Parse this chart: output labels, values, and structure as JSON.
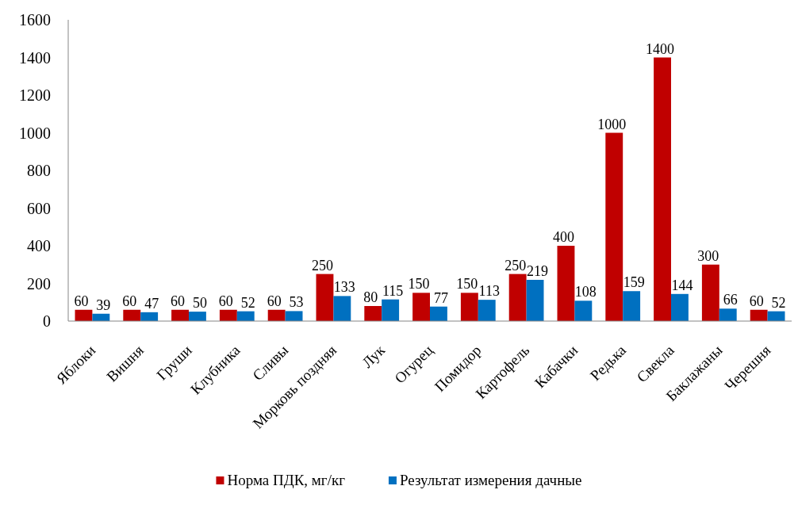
{
  "chart_data": {
    "type": "bar",
    "categories": [
      "Яблоки",
      "Вишня",
      "Груши",
      "Клубника",
      "Сливы",
      "Морковь поздняя",
      "Лук",
      "Огурец",
      "Помидор",
      "Картофель",
      "Кабачки",
      "Редька",
      "Свекла",
      "Баклажаны",
      "Черешня"
    ],
    "series": [
      {
        "name": "Норма ПДК, мг/кг",
        "color": "#c00000",
        "values": [
          60,
          60,
          60,
          60,
          60,
          250,
          80,
          150,
          150,
          250,
          400,
          1000,
          1400,
          300,
          60
        ]
      },
      {
        "name": "Результат измерения дачные",
        "color": "#0070c0",
        "values": [
          39,
          47,
          50,
          52,
          53,
          133,
          115,
          77,
          113,
          219,
          108,
          159,
          144,
          66,
          52
        ]
      }
    ],
    "ylim": [
      0,
      1600
    ],
    "yticks": [
      0,
      200,
      400,
      600,
      800,
      1000,
      1200,
      1400,
      1600
    ],
    "data_labels": true,
    "legend": "bottom"
  }
}
